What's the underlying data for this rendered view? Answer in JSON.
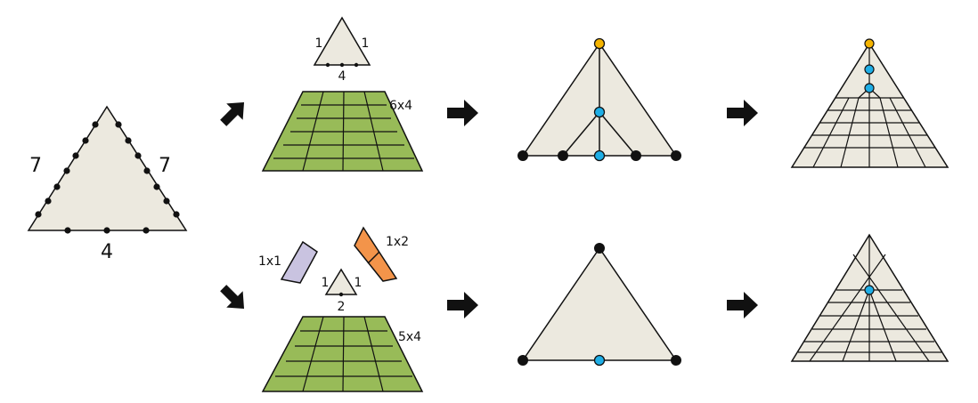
{
  "colors": {
    "beige": "#ece9df",
    "green": "#98bb58",
    "purple": "#c9c3e0",
    "orange": "#f3944a",
    "yellow": "#f5b400",
    "blue": "#1eaee6",
    "black": "#111111"
  },
  "input_triangle": {
    "left": "7",
    "right": "7",
    "bottom": "4"
  },
  "top_row": {
    "small_triangle": {
      "left": "1",
      "right": "1",
      "bottom": "4"
    },
    "grid_label": "6x4"
  },
  "bottom_row": {
    "patch_a_label": "1x1",
    "patch_b_label": "1x2",
    "small_triangle": {
      "left": "1",
      "right": "1",
      "bottom": "2"
    },
    "grid_label": "5x4"
  },
  "icons": [
    "arrow-up-right-icon",
    "arrow-down-right-icon",
    "arrow-right-icon"
  ]
}
